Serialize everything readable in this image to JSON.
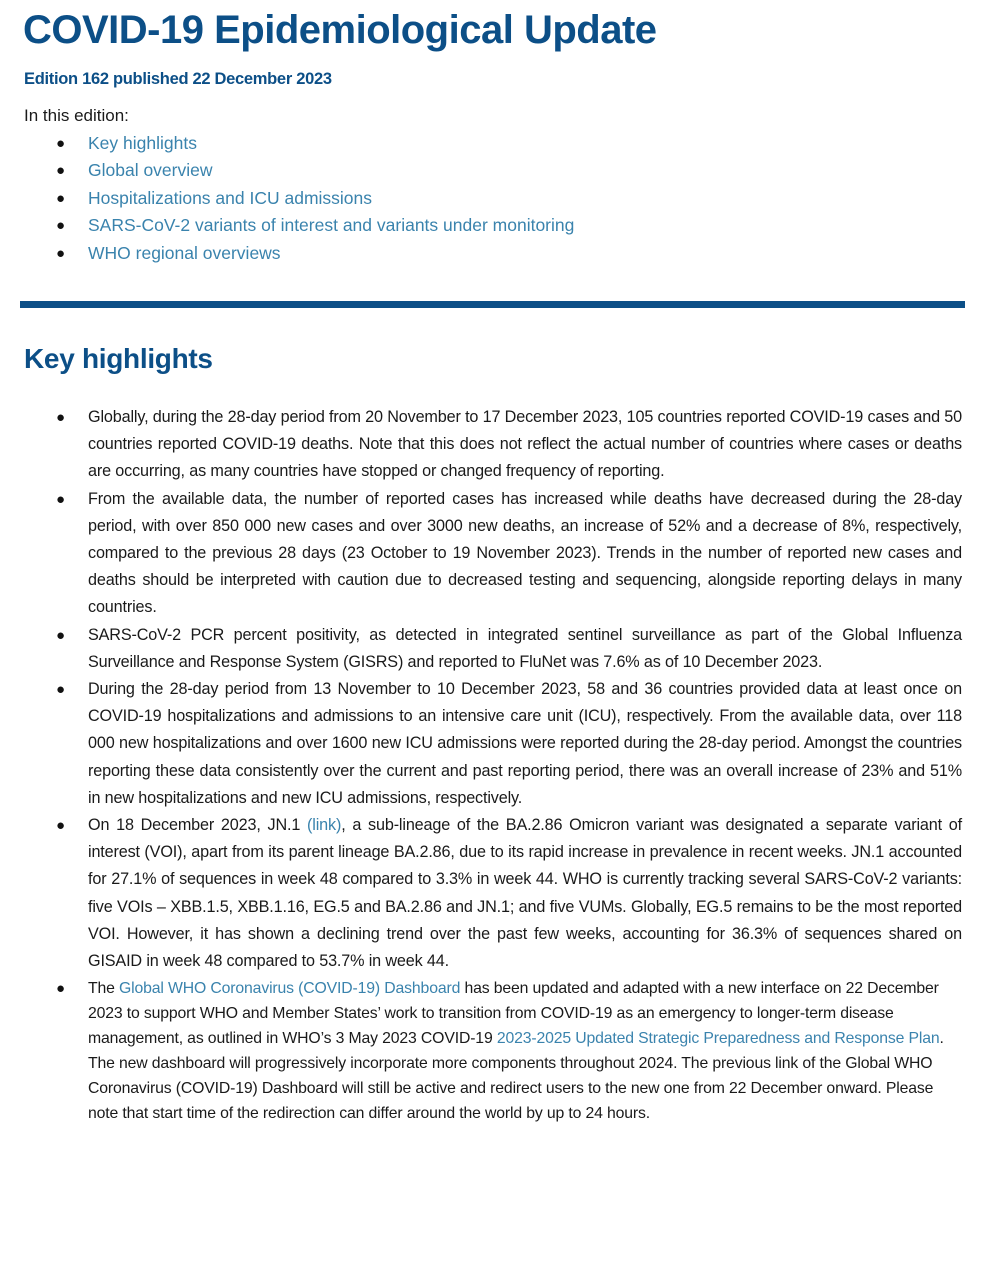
{
  "header": {
    "title": "COVID-19 Epidemiological Update",
    "edition": "Edition 162 published 22 December 2023",
    "intro": "In this edition:",
    "toc": [
      "Key highlights",
      "Global overview",
      "Hospitalizations and ICU admissions",
      "SARS-CoV-2 variants of interest and variants under monitoring",
      "WHO regional overviews"
    ]
  },
  "key_highlights": {
    "heading": "Key highlights",
    "items": [
      {
        "text": "Globally, during the 28-day period from 20 November to 17 December 2023, 105 countries reported COVID-19 cases and 50 countries reported COVID-19 deaths. Note that this does not reflect the actual number of countries where cases or deaths are occurring, as many countries have stopped or changed frequency of reporting."
      },
      {
        "text": "From the available data, the number of reported cases has increased while deaths have decreased during the 28-day period, with over 850 000 new cases and over 3000 new deaths, an increase of 52% and a decrease of 8%, respectively, compared to the previous 28 days (23 October to 19 November 2023). Trends in the number of reported new cases and deaths should be interpreted with caution due to decreased testing and sequencing, alongside reporting delays in many countries."
      },
      {
        "text": "SARS-CoV-2 PCR percent positivity, as detected in integrated sentinel surveillance as part of the Global Influenza Surveillance and Response System (GISRS) and reported to FluNet was 7.6% as of 10 December 2023."
      },
      {
        "text": "During the 28-day period from 13 November to 10 December 2023, 58 and 36 countries provided data at least once on COVID-19 hospitalizations and admissions to an intensive care unit (ICU), respectively. From the available data, over 118 000 new hospitalizations and over 1600 new ICU admissions were reported during the 28-day period.  Amongst the countries reporting these data consistently over the current and past reporting period, there was an overall increase of 23% and 51% in new hospitalizations and new ICU admissions, respectively."
      },
      {
        "pre": "On 18 December 2023, JN.1 ",
        "link": "(link)",
        "post": ", a sub-lineage of the BA.2.86 Omicron variant was designated a separate variant of interest (VOI), apart from its parent lineage BA.2.86, due to its rapid increase in prevalence in recent weeks. JN.1 accounted for 27.1% of sequences in week 48 compared to 3.3% in week 44. WHO is currently tracking several SARS-CoV-2 variants: five VOIs – XBB.1.5, XBB.1.16, EG.5 and BA.2.86 and JN.1; and five VUMs. Globally, EG.5 remains to be the most reported VOI. However, it has shown a declining trend over the past few weeks, accounting for 36.3% of sequences shared on GISAID in week 48 compared to 53.7% in week 44."
      },
      {
        "pre": "The ",
        "link": "Global WHO Coronavirus (COVID-19) Dashboard",
        "mid": " has been updated and adapted with a new interface on 22 December 2023 to support WHO and Member States’ work to transition from COVID-19 as an emergency to longer-term disease management, as outlined in WHO’s 3 May 2023 COVID-19 ",
        "link2": "2023-2025 Updated Strategic Preparedness and Response Plan",
        "post": ". The new dashboard will progressively incorporate more components throughout 2024. The previous link of the Global WHO Coronavirus (COVID-19) Dashboard will still be active and redirect users to the new one from 22 December onward. Please note that start time of the redirection can differ around the world by up to 24 hours."
      }
    ]
  },
  "colors": {
    "brand": "#0c4f87",
    "link": "#3a83ad"
  }
}
